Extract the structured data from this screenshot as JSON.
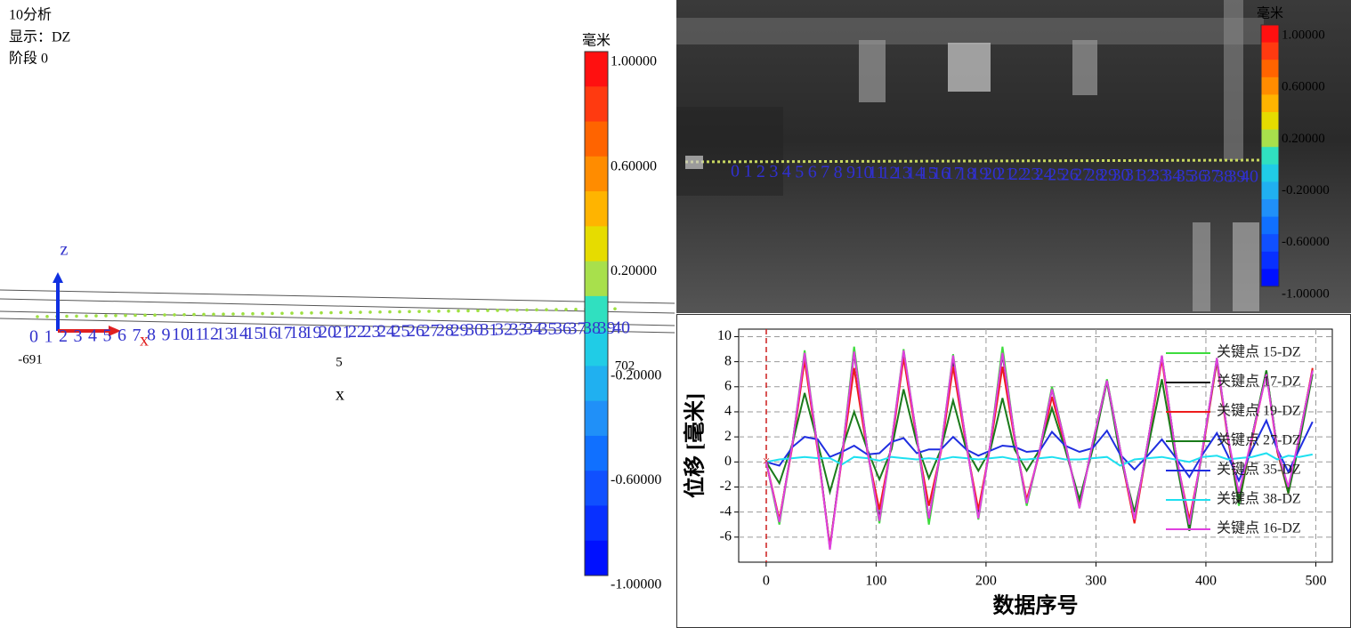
{
  "info": {
    "lines": [
      "10分析",
      "显示：DZ",
      "阶段 0"
    ]
  },
  "left_view": {
    "colorbar": {
      "unit": "毫米",
      "ticks": [
        "1.00000",
        "0.60000",
        "0.20000",
        "-0.20000",
        "-0.60000",
        "-1.00000"
      ]
    },
    "labels": {
      "axis_z": "z",
      "axis_x": "x",
      "coord_min": "-691",
      "coord_mid": "5",
      "axis_name": "x",
      "coord_max": "702"
    }
  },
  "nodes": [
    "0",
    "1",
    "2",
    "3",
    "4",
    "5",
    "6",
    "7",
    "8",
    "9",
    "10",
    "11",
    "12",
    "13",
    "14",
    "15",
    "16",
    "17",
    "18",
    "19",
    "20",
    "21",
    "22",
    "23",
    "24",
    "25",
    "26",
    "27",
    "28",
    "29",
    "30",
    "31",
    "32",
    "33",
    "34",
    "35",
    "36",
    "37",
    "38",
    "39",
    "40"
  ],
  "camera_view": {
    "colorbar": {
      "unit": "毫米",
      "ticks": [
        "1.00000",
        "0.60000",
        "0.20000",
        "-0.20000",
        "-0.60000",
        "-1.00000"
      ]
    }
  },
  "chart_data": {
    "type": "line",
    "xlabel": "数据序号",
    "ylabel": "位移 [毫米]",
    "x": [
      0,
      12,
      24,
      35,
      47,
      58,
      69,
      80,
      92,
      103,
      114,
      125,
      137,
      148,
      159,
      170,
      182,
      193,
      204,
      215,
      226,
      237,
      249,
      260,
      272,
      285,
      297,
      310,
      322,
      335,
      347,
      360,
      372,
      385,
      397,
      410,
      420,
      430,
      442,
      455,
      465,
      475,
      485,
      497
    ],
    "xlim": [
      -25,
      515
    ],
    "ylim": [
      -8,
      10.6
    ],
    "xticks": [
      0,
      100,
      200,
      300,
      400,
      500
    ],
    "yticks": [
      -6,
      -4,
      -2,
      0,
      2,
      4,
      6,
      8,
      10
    ],
    "grid": true,
    "legend": "upper right",
    "series": [
      {
        "name": "关键点 15-DZ",
        "color": "#3ddc3d",
        "values": [
          0,
          -5.0,
          1.5,
          8.9,
          1.0,
          -6.9,
          0.5,
          9.2,
          1.0,
          -4.9,
          1.5,
          9.0,
          2.0,
          -5.0,
          1.0,
          8.6,
          1.5,
          -4.6,
          1.5,
          9.2,
          2.0,
          -3.5,
          1.0,
          6.0,
          1.5,
          -3.7,
          1.5,
          6.6,
          1.0,
          -4.8,
          1.5,
          8.5,
          1.0,
          -5.2,
          1.0,
          8.3,
          2.0,
          -3.5,
          2.0,
          7.3,
          1.0,
          -2.5,
          2.0,
          7.4
        ]
      },
      {
        "name": "关键点 17-DZ",
        "color": "#111111",
        "values": [
          0,
          -4.7,
          1.5,
          8.5,
          1.0,
          -6.8,
          0.5,
          8.7,
          1.0,
          -4.5,
          1.5,
          8.6,
          2.0,
          -4.5,
          1.0,
          8.2,
          1.5,
          -4.3,
          1.5,
          8.6,
          2.0,
          -3.3,
          1.0,
          5.8,
          1.5,
          -3.6,
          1.5,
          6.5,
          1.0,
          -4.6,
          1.5,
          8.4,
          1.0,
          -5.1,
          1.0,
          8.1,
          2.0,
          -3.2,
          2.0,
          7.2,
          1.0,
          -2.2,
          2.0,
          7.3
        ]
      },
      {
        "name": "关键点 19-DZ",
        "color": "#ee1c1c",
        "values": [
          0,
          -4.6,
          1.3,
          8.1,
          0.8,
          -6.8,
          0.3,
          7.5,
          0.8,
          -3.8,
          1.3,
          8.3,
          1.8,
          -3.5,
          0.8,
          7.6,
          1.3,
          -3.8,
          1.3,
          7.6,
          1.8,
          -3.0,
          0.8,
          5.2,
          1.3,
          -3.4,
          1.3,
          6.4,
          0.8,
          -4.9,
          1.3,
          8.2,
          0.8,
          -4.6,
          0.8,
          8.0,
          1.8,
          -3.0,
          1.8,
          7.1,
          0.8,
          -2.5,
          1.8,
          7.5
        ]
      },
      {
        "name": "关键点 27-DZ",
        "color": "#1a7a1a",
        "values": [
          0,
          -1.7,
          1.5,
          5.5,
          1.5,
          -2.4,
          1.0,
          4.0,
          1.0,
          -1.4,
          1.0,
          5.8,
          1.5,
          -1.3,
          1.0,
          4.9,
          1.0,
          -0.7,
          1.0,
          5.1,
          1.0,
          -0.7,
          1.0,
          4.3,
          1.0,
          -3.0,
          1.0,
          6.4,
          0.5,
          -4.0,
          1.0,
          6.6,
          0.5,
          -5.5,
          1.0,
          8.2,
          2.0,
          -3.0,
          2.0,
          7.3,
          1.0,
          -2.5,
          1.5,
          7.0
        ]
      },
      {
        "name": "关键点 35-DZ",
        "color": "#1f2ee0",
        "values": [
          0,
          -0.3,
          1.2,
          2.0,
          1.8,
          0.4,
          0.8,
          1.3,
          0.6,
          0.7,
          1.6,
          1.9,
          0.7,
          1.0,
          1.0,
          2.0,
          1.0,
          0.5,
          0.9,
          1.3,
          1.2,
          0.8,
          0.9,
          2.4,
          1.3,
          0.8,
          1.1,
          2.5,
          0.6,
          -0.6,
          0.5,
          1.8,
          0.4,
          -1.2,
          0.6,
          2.3,
          0.5,
          -1.5,
          1.0,
          3.3,
          1.0,
          -0.8,
          1.0,
          3.2
        ]
      },
      {
        "name": "关键点 38-DZ",
        "color": "#1ee0f0",
        "values": [
          0,
          0.2,
          0.3,
          0.4,
          0.3,
          0.3,
          -0.2,
          0.4,
          0.3,
          0.1,
          0.4,
          0.3,
          0.2,
          0.3,
          0.2,
          0.4,
          0.3,
          0.2,
          0.3,
          0.4,
          0.2,
          0.2,
          0.3,
          0.4,
          0.2,
          0.2,
          0.3,
          0.4,
          -0.3,
          0.2,
          0.3,
          0.4,
          0.2,
          0.0,
          0.4,
          0.5,
          0.2,
          0.3,
          0.4,
          0.7,
          0.2,
          0.5,
          0.4,
          0.6
        ]
      },
      {
        "name": "关键点 16-DZ",
        "color": "#e040e0",
        "values": [
          0,
          -4.8,
          1.5,
          8.7,
          1.0,
          -7.0,
          0.5,
          8.8,
          1.0,
          -4.7,
          1.5,
          8.9,
          2.0,
          -4.5,
          1.0,
          8.5,
          1.5,
          -4.5,
          1.5,
          8.7,
          2.0,
          -3.3,
          1.0,
          5.8,
          1.5,
          -3.7,
          1.5,
          6.5,
          1.0,
          -4.6,
          1.5,
          8.5,
          1.0,
          -5.0,
          1.0,
          8.3,
          2.0,
          -2.5,
          2.0,
          7.0,
          1.0,
          -2.0,
          2.0,
          7.3
        ]
      }
    ]
  }
}
